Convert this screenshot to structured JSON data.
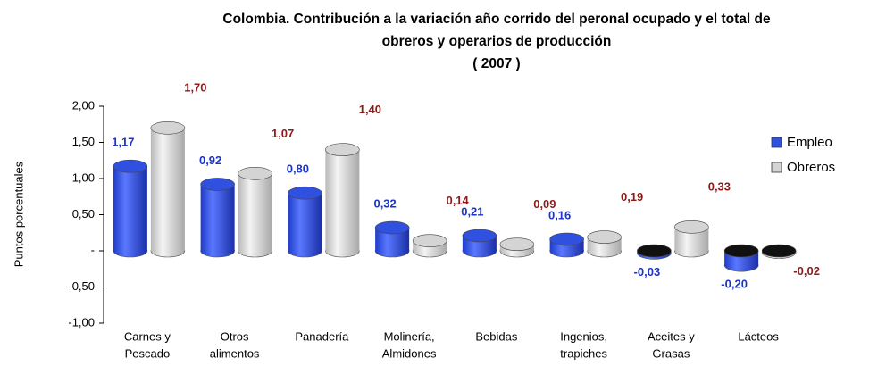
{
  "chart_data": {
    "type": "bar",
    "title": [
      "Colombia. Contribución a la variación año corrido del peronal ocupado y el total de",
      "obreros y operarios de producción",
      "( 2007 )"
    ],
    "y_label": "Puntos porcentuales",
    "categories": [
      [
        "Carnes y",
        "Pescado"
      ],
      [
        "Otros",
        "alimentos"
      ],
      [
        "Panadería"
      ],
      [
        "Molinería,",
        "Almidones"
      ],
      [
        "Bebidas"
      ],
      [
        "Ingenios,",
        "trapiches"
      ],
      [
        "Aceites y",
        "Grasas"
      ],
      [
        "Lácteos"
      ]
    ],
    "series": [
      {
        "name": "Empleo",
        "color": "#3050e0",
        "label_color": "#1a33cc",
        "values": [
          1.17,
          0.92,
          0.8,
          0.32,
          0.21,
          0.16,
          -0.03,
          -0.2
        ],
        "value_labels": [
          "1,17",
          "0,92",
          "0,80",
          "0,32",
          "0,21",
          "0,16",
          "-0,03",
          "-0,20"
        ]
      },
      {
        "name": "Obreros",
        "color": "#d4d4d4",
        "label_color": "#8b1a1a",
        "values": [
          1.7,
          1.07,
          1.4,
          0.14,
          0.09,
          0.19,
          0.33,
          -0.02
        ],
        "value_labels": [
          "1,70",
          "1,07",
          "1,40",
          "0,14",
          "0,09",
          "0,19",
          "0,33",
          "-0,02"
        ]
      }
    ],
    "ylim": [
      -1.0,
      2.0
    ],
    "yticks": [
      {
        "value": -1.0,
        "label": "-1,00"
      },
      {
        "value": -0.5,
        "label": "-0,50"
      },
      {
        "value": 0,
        "label": "-"
      },
      {
        "value": 0.5,
        "label": "0,50"
      },
      {
        "value": 1.0,
        "label": "1,00"
      },
      {
        "value": 1.5,
        "label": "1,50"
      },
      {
        "value": 2.0,
        "label": "2,00"
      }
    ],
    "legend": "right"
  }
}
